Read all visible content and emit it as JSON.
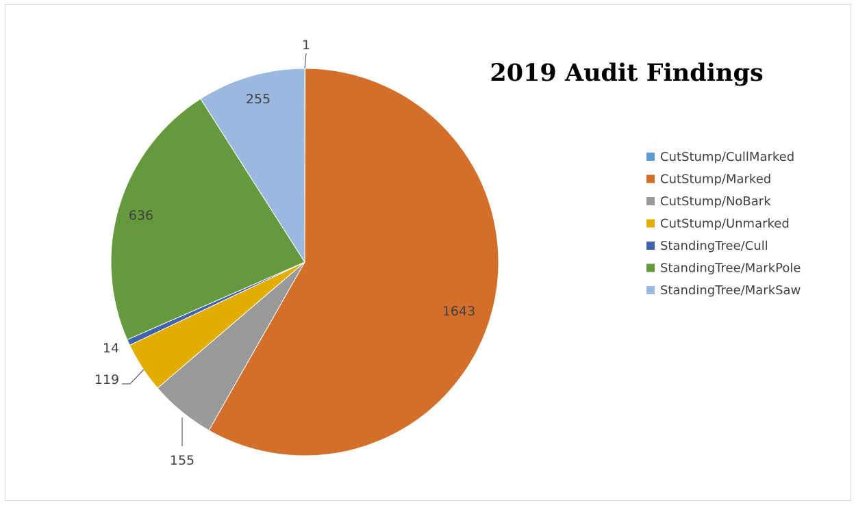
{
  "chart_data": {
    "type": "pie",
    "title": "2019 Audit Findings",
    "legend_position": "right",
    "slices": [
      {
        "name": "CutStump/CullMarked",
        "value": 1,
        "color": "#5b9bd5"
      },
      {
        "name": "CutStump/Marked",
        "value": 1643,
        "color": "#d36f2a"
      },
      {
        "name": "CutStump/NoBark",
        "value": 155,
        "color": "#999999"
      },
      {
        "name": "CutStump/Unmarked",
        "value": 119,
        "color": "#e3ad00"
      },
      {
        "name": "StandingTree/Cull",
        "value": 14,
        "color": "#3f63ad"
      },
      {
        "name": "StandingTree/MarkPole",
        "value": 636,
        "color": "#65993d"
      },
      {
        "name": "StandingTree/MarkSaw",
        "value": 255,
        "color": "#9bb9df"
      }
    ]
  }
}
